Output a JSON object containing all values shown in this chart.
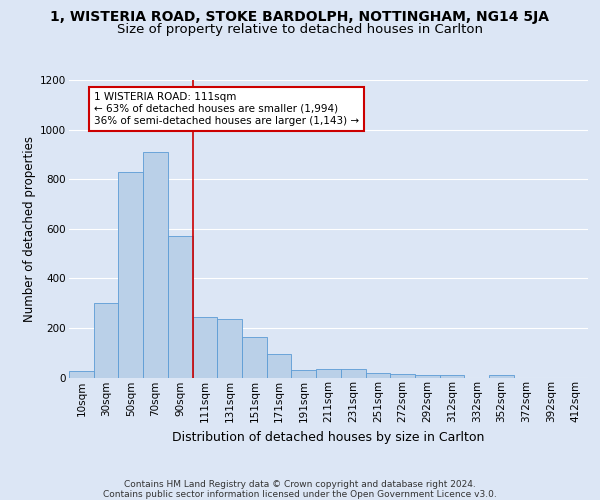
{
  "title_line1": "1, WISTERIA ROAD, STOKE BARDOLPH, NOTTINGHAM, NG14 5JA",
  "title_line2": "Size of property relative to detached houses in Carlton",
  "xlabel": "Distribution of detached houses by size in Carlton",
  "ylabel": "Number of detached properties",
  "footer_line1": "Contains HM Land Registry data © Crown copyright and database right 2024.",
  "footer_line2": "Contains public sector information licensed under the Open Government Licence v3.0.",
  "bar_labels": [
    "10sqm",
    "30sqm",
    "50sqm",
    "70sqm",
    "90sqm",
    "111sqm",
    "131sqm",
    "151sqm",
    "171sqm",
    "191sqm",
    "211sqm",
    "231sqm",
    "251sqm",
    "272sqm",
    "292sqm",
    "312sqm",
    "332sqm",
    "352sqm",
    "372sqm",
    "392sqm",
    "412sqm"
  ],
  "bar_values": [
    25,
    300,
    830,
    910,
    570,
    245,
    235,
    165,
    95,
    30,
    35,
    35,
    20,
    15,
    12,
    12,
    0,
    10,
    0,
    0,
    0
  ],
  "bar_color": "#bad0e8",
  "bar_edge_color": "#5b9bd5",
  "highlight_index": 5,
  "highlight_line_color": "#cc0000",
  "annotation_text": "1 WISTERIA ROAD: 111sqm\n← 63% of detached houses are smaller (1,994)\n36% of semi-detached houses are larger (1,143) →",
  "annotation_box_facecolor": "#ffffff",
  "annotation_box_edgecolor": "#cc0000",
  "ylim": [
    0,
    1200
  ],
  "yticks": [
    0,
    200,
    400,
    600,
    800,
    1000,
    1200
  ],
  "background_color": "#dce6f5",
  "plot_facecolor": "#dce6f5",
  "grid_color": "#ffffff",
  "title1_fontsize": 10,
  "title2_fontsize": 9.5,
  "xlabel_fontsize": 9,
  "ylabel_fontsize": 8.5,
  "tick_fontsize": 7.5,
  "annotation_fontsize": 7.5,
  "footer_fontsize": 6.5
}
